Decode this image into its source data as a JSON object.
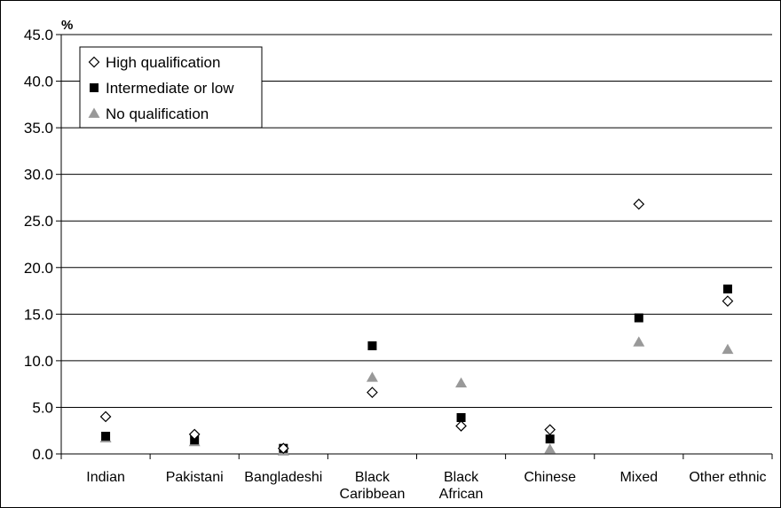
{
  "chart_data": {
    "type": "scatter",
    "ylabel": "%",
    "ylim": [
      0,
      45
    ],
    "yticks": [
      "0.0",
      "5.0",
      "10.0",
      "15.0",
      "20.0",
      "25.0",
      "30.0",
      "35.0",
      "40.0",
      "45.0"
    ],
    "grid": true,
    "legend_position": "top-left",
    "categories": [
      [
        "Indian"
      ],
      [
        "Pakistani"
      ],
      [
        "Bangladeshi"
      ],
      [
        "Black",
        "Caribbean"
      ],
      [
        "Black",
        "African"
      ],
      [
        "Chinese"
      ],
      [
        "Mixed"
      ],
      [
        "Other ethnic"
      ]
    ],
    "series": [
      {
        "name": "High qualification",
        "marker": "diamond-open",
        "color": "#000000",
        "values": [
          4.0,
          2.1,
          0.6,
          6.6,
          3.0,
          2.6,
          26.8,
          16.4
        ]
      },
      {
        "name": "Intermediate or low",
        "marker": "square",
        "color": "#000000",
        "values": [
          1.9,
          1.5,
          0.6,
          11.6,
          3.9,
          1.6,
          14.6,
          17.7
        ]
      },
      {
        "name": "No qualification",
        "marker": "triangle",
        "color": "#999999",
        "values": [
          1.7,
          1.3,
          0.3,
          8.2,
          7.6,
          0.5,
          12.0,
          11.2
        ]
      }
    ]
  }
}
